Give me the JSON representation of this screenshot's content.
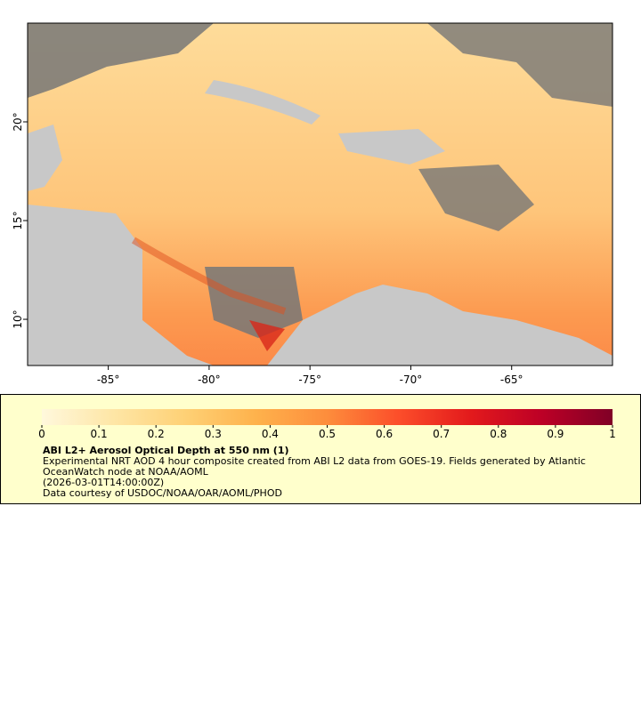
{
  "map": {
    "xlim": [
      -89,
      -60
    ],
    "ylim": [
      7.66,
      25
    ],
    "xticks": [
      {
        "value": -85,
        "label": "-85°"
      },
      {
        "value": -80,
        "label": "-80°"
      },
      {
        "value": -75,
        "label": "-75°"
      },
      {
        "value": -70,
        "label": "-70°"
      },
      {
        "value": -65,
        "label": "-65°"
      }
    ],
    "yticks": [
      {
        "value": 10,
        "label": "10°"
      },
      {
        "value": 15,
        "label": "15°"
      },
      {
        "value": 20,
        "label": "20°"
      }
    ]
  },
  "colorbar": {
    "range": [
      0,
      1
    ],
    "ticks": [
      0,
      0.1,
      0.2,
      0.3,
      0.4,
      0.5,
      0.6,
      0.7,
      0.8,
      0.9,
      1
    ],
    "colors": [
      "#fff8dc",
      "#fee6a6",
      "#fed176",
      "#feb24c",
      "#fd8d3c",
      "#fc4e2a",
      "#e31a1c",
      "#bd0026",
      "#800026"
    ]
  },
  "caption": {
    "title": "ABI L2+ Aerosol Optical Depth at 550 nm (1)",
    "lines": [
      "Experimental NRT AOD 4 hour composite created from ABI L2 data from GOES-19. Fields generated by Atlantic",
      "OceanWatch node at NOAA/AOML",
      "(2026-03-01T14:00:00Z)",
      "Data courtesy of USDOC/NOAA/OAR/AOML/PHOD"
    ]
  }
}
